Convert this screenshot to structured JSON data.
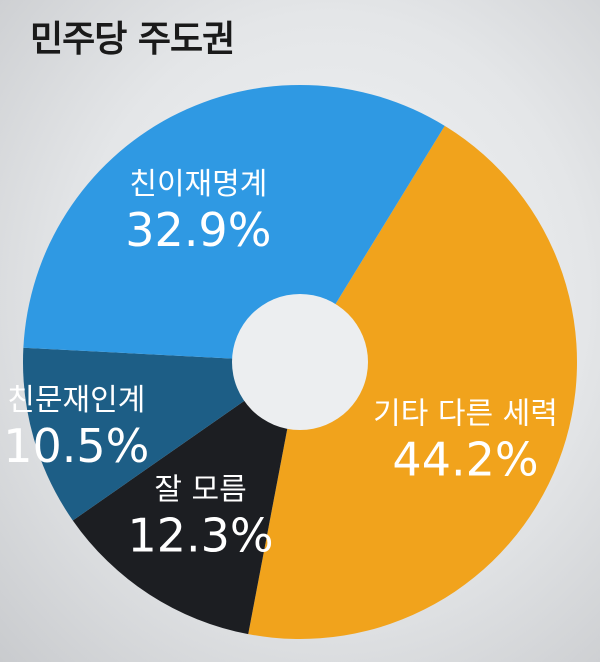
{
  "chart_data": {
    "type": "pie",
    "title": "민주당 주도권",
    "donut_hole": true,
    "slices": [
      {
        "label": "기타 다른 세력",
        "value": 44.2,
        "value_label": "44.2%",
        "color": "#f1a31c"
      },
      {
        "label": "잘 모름",
        "value": 12.3,
        "value_label": "12.3%",
        "color": "#1c1e22"
      },
      {
        "label": "친문재인계",
        "value": 10.5,
        "value_label": "10.5%",
        "color": "#1d5e86"
      },
      {
        "label": "친이재명계",
        "value": 32.9,
        "value_label": "32.9%",
        "color": "#2f99e3"
      }
    ]
  }
}
